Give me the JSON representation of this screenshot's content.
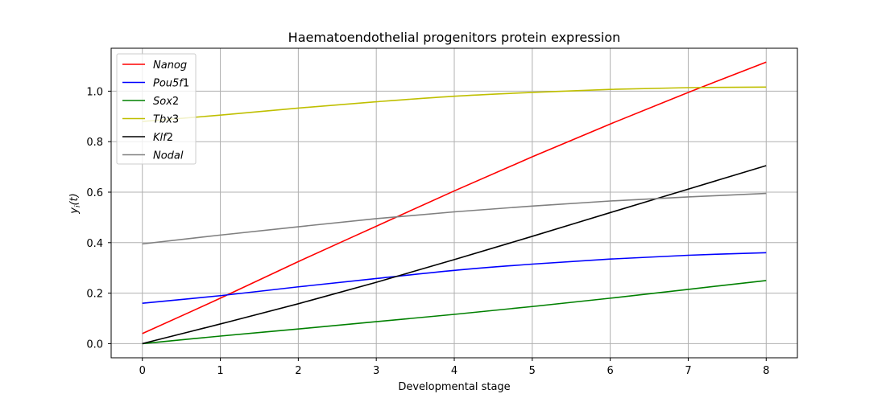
{
  "chart_data": {
    "type": "line",
    "title": "Haematoendothelial progenitors protein expression",
    "xlabel": "Developmental stage",
    "ylabel_main": "y",
    "ylabel_sub": "i",
    "ylabel_suffix": "(t)",
    "xlim": [
      -0.4,
      8.4
    ],
    "ylim": [
      -0.056,
      1.17
    ],
    "x_ticks": [
      0,
      1,
      2,
      3,
      4,
      5,
      6,
      7,
      8
    ],
    "x_tick_labels": [
      "0",
      "1",
      "2",
      "3",
      "4",
      "5",
      "6",
      "7",
      "8"
    ],
    "y_ticks": [
      0.0,
      0.2,
      0.4,
      0.6,
      0.8,
      1.0
    ],
    "y_tick_labels": [
      "0.0",
      "0.2",
      "0.4",
      "0.6",
      "0.8",
      "1.0"
    ],
    "grid": true,
    "legend_position": "top-left",
    "x": [
      0,
      1,
      2,
      3,
      4,
      5,
      6,
      7,
      8
    ],
    "series": [
      {
        "name": "Nanog",
        "color": "#ff0000",
        "values": [
          0.04,
          0.18,
          0.325,
          0.465,
          0.605,
          0.74,
          0.87,
          0.995,
          1.115
        ]
      },
      {
        "name": "Pou5f1",
        "color": "#0000ff",
        "values": [
          0.16,
          0.19,
          0.225,
          0.258,
          0.29,
          0.315,
          0.335,
          0.35,
          0.36
        ]
      },
      {
        "name": "Sox2",
        "color": "#008000",
        "values": [
          0.0,
          0.03,
          0.058,
          0.087,
          0.116,
          0.147,
          0.18,
          0.215,
          0.25
        ]
      },
      {
        "name": "Tbx3",
        "color": "#bfbf00",
        "values": [
          0.88,
          0.905,
          0.933,
          0.958,
          0.98,
          0.995,
          1.007,
          1.014,
          1.016
        ]
      },
      {
        "name": "Klf2",
        "color": "#000000",
        "values": [
          0.0,
          0.078,
          0.158,
          0.243,
          0.333,
          0.425,
          0.519,
          0.612,
          0.705
        ]
      },
      {
        "name": "Nodal",
        "color": "#808080",
        "values": [
          0.395,
          0.43,
          0.463,
          0.495,
          0.522,
          0.545,
          0.565,
          0.581,
          0.595
        ]
      }
    ],
    "legend_labels": [
      {
        "main": "Nanog",
        "suffix": ""
      },
      {
        "main": "Pou5f",
        "suffix": "1"
      },
      {
        "main": "Sox",
        "suffix": "2"
      },
      {
        "main": "Tbx",
        "suffix": "3"
      },
      {
        "main": "Klf",
        "suffix": "2"
      },
      {
        "main": "Nodal",
        "suffix": ""
      }
    ]
  }
}
